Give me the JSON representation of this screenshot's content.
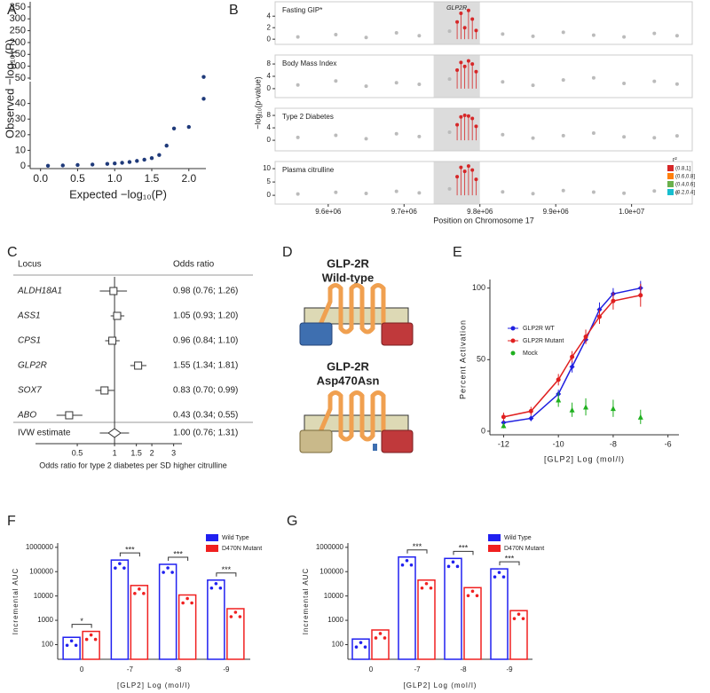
{
  "panel_labels": [
    "A",
    "B",
    "C",
    "D",
    "E",
    "F",
    "G"
  ],
  "diagram": {
    "wild_type": {
      "title": "GLP-2R",
      "subtitle": "Wild-type"
    },
    "mutant": {
      "title": "GLP-2R",
      "subtitle": "Asp470Asn"
    }
  },
  "chart_data": [
    {
      "type": "scatter",
      "color": "#1f3a7a",
      "xlim": [
        -0.14,
        2.23
      ],
      "ylim": [
        42.5,
        372
      ],
      "yticks": [
        50,
        100,
        150,
        200,
        250,
        300,
        350
      ],
      "x": [
        2.2
      ],
      "values": [
        55
      ]
    },
    {
      "type": "scatter",
      "color": "#1f3a7a",
      "xlim": [
        -0.14,
        2.23
      ],
      "ylim": [
        -1.7,
        54
      ],
      "xlabel": "Expected −log₁₀(P)",
      "ylabel": "Observed −log₁₀(P)",
      "xticks": [
        {
          "value": 0,
          "label": "0.0"
        },
        {
          "value": 0.5,
          "label": "0.5"
        },
        {
          "value": 1,
          "label": "1.0"
        },
        {
          "value": 1.5,
          "label": "1.5"
        },
        {
          "value": 2,
          "label": "2.0"
        }
      ],
      "yticks": [
        0,
        10,
        20,
        30,
        40
      ],
      "x": [
        0.1,
        0.3,
        0.5,
        0.7,
        0.9,
        1.0,
        1.1,
        1.2,
        1.3,
        1.4,
        1.5,
        1.6,
        1.7,
        1.8,
        2.0,
        2.2
      ],
      "values": [
        0.1,
        0.3,
        0.6,
        0.9,
        1.3,
        1.6,
        2,
        2.5,
        3.2,
        4,
        5,
        7,
        13,
        24,
        25,
        43
      ]
    },
    {
      "type": "locus",
      "title": "Fasting GIP*",
      "color": "#d62728",
      "background_color": "#bbbbbb",
      "region": [
        9739000,
        9800000
      ],
      "region_label": "GLP2R",
      "xlim": [
        9530000,
        10080000
      ],
      "ylim": [
        -0.9,
        6.5
      ],
      "yticks": [
        0,
        2,
        4
      ],
      "x": [
        9560000,
        9610000,
        9650000,
        9690000,
        9720000,
        9760000,
        9830000,
        9870000,
        9910000,
        9950000,
        9990000,
        10030000,
        10060000
      ],
      "values": [
        0.4,
        0.8,
        0.3,
        1.1,
        0.6,
        1.4,
        0.9,
        0.5,
        1.2,
        0.7,
        0.4,
        1.0,
        0.6
      ],
      "highlight_x": [
        9770000,
        9775000,
        9780000,
        9785000,
        9790000,
        9795000
      ],
      "highlight_values": [
        3,
        4.5,
        2,
        5,
        3.5,
        1.5
      ]
    },
    {
      "type": "locus",
      "title": "Body Mass Index",
      "color": "#d62728",
      "background_color": "#bbbbbb",
      "region": [
        9739000,
        9800000
      ],
      "xlim": [
        9530000,
        10080000
      ],
      "ylim": [
        -2.9,
        10.9
      ],
      "yticks": [
        0,
        4,
        8
      ],
      "x": [
        9560000,
        9610000,
        9650000,
        9690000,
        9720000,
        9760000,
        9830000,
        9870000,
        9910000,
        9950000,
        9990000,
        10030000,
        10060000
      ],
      "values": [
        1.2,
        2.5,
        0.8,
        1.9,
        1.4,
        3.1,
        2.2,
        1.1,
        2.8,
        3.5,
        1.7,
        2.4,
        1.5
      ],
      "highlight_x": [
        9770000,
        9775000,
        9780000,
        9785000,
        9790000,
        9795000
      ],
      "highlight_values": [
        6,
        8.5,
        7.2,
        9,
        8,
        5.5
      ]
    },
    {
      "type": "locus",
      "title": "Type 2 Diabetes",
      "color": "#d62728",
      "background_color": "#bbbbbb",
      "region": [
        9739000,
        9800000
      ],
      "xlim": [
        9530000,
        10080000
      ],
      "ylim": [
        -3.4,
        10.3
      ],
      "yticks": [
        0,
        4,
        8
      ],
      "x": [
        9560000,
        9610000,
        9650000,
        9690000,
        9720000,
        9760000,
        9830000,
        9870000,
        9910000,
        9950000,
        9990000,
        10030000,
        10060000
      ],
      "values": [
        0.9,
        1.6,
        0.5,
        2.1,
        1.2,
        2.6,
        1.8,
        0.7,
        1.5,
        2.3,
        1.1,
        0.8,
        1.4
      ],
      "highlight_x": [
        9770000,
        9775000,
        9780000,
        9785000,
        9790000,
        9795000
      ],
      "highlight_values": [
        5,
        7.5,
        8,
        7.8,
        7,
        4.5
      ]
    },
    {
      "type": "locus",
      "title": "Plasma citrulline",
      "color": "#d62728",
      "background_color": "#bbbbbb",
      "region": [
        9739000,
        9800000
      ],
      "xlim": [
        9530000,
        10080000
      ],
      "ylim": [
        -3.3,
        12.7
      ],
      "yticks": [
        0,
        5,
        10
      ],
      "xlabel": "Position on Chromosome 17",
      "ylabel": "−log₁₀(p-value)",
      "xticks": [
        {
          "value": 9600000,
          "label": "9.6e+06"
        },
        {
          "value": 9700000,
          "label": "9.7e+06"
        },
        {
          "value": 9800000,
          "label": "9.8e+06"
        },
        {
          "value": 9900000,
          "label": "9.9e+06"
        },
        {
          "value": 10000000,
          "label": "1.0e+07"
        }
      ],
      "x": [
        9560000,
        9610000,
        9650000,
        9690000,
        9720000,
        9760000,
        9830000,
        9870000,
        9910000,
        9950000,
        9990000,
        10030000,
        10060000
      ],
      "values": [
        0.5,
        1.1,
        0.7,
        1.5,
        0.9,
        2.4,
        1.3,
        0.6,
        1.8,
        1.2,
        0.8,
        1.6,
        1.0
      ],
      "highlight_x": [
        9770000,
        9775000,
        9780000,
        9785000,
        9790000,
        9795000
      ],
      "highlight_values": [
        7,
        10.5,
        9,
        11,
        9.5,
        6
      ],
      "legend": {
        "title": "r²",
        "labels": [
          "(0.8,1]",
          "(0.6,0.8]",
          "(0.4,0.6]",
          "(0.2,0.4]"
        ],
        "colors": [
          "#d62728",
          "#ff7f0e",
          "#6ab04c",
          "#17becf"
        ]
      }
    },
    {
      "type": "forest",
      "header_locus": "Locus",
      "header_value": "Odds ratio",
      "xlabel": "Odds ratio for type 2 diabetes per SD higher citrulline",
      "xscale": "log",
      "xlim": [
        0.23,
        3.5
      ],
      "xticks": [
        0.5,
        1,
        1.5,
        2,
        3
      ],
      "categories": [
        "ALDH18A1",
        "ASS1",
        "CPS1",
        "GLP2R",
        "SOX7",
        "ABO"
      ],
      "values": [
        0.98,
        1.05,
        0.96,
        1.55,
        0.83,
        0.43
      ],
      "ci_low": [
        0.76,
        0.93,
        0.84,
        1.34,
        0.7,
        0.34
      ],
      "ci_high": [
        1.26,
        1.2,
        1.1,
        1.81,
        0.99,
        0.55
      ],
      "value_labels": [
        "0.98 (0.76; 1.26)",
        "1.05 (0.93; 1.20)",
        "0.96 (0.84; 1.10)",
        "1.55 (1.34; 1.81)",
        "0.83 (0.70; 0.99)",
        "0.43 (0.34; 0.55)"
      ],
      "summary": {
        "label": "IVW estimate",
        "value": 1.0,
        "ci_low": 0.76,
        "ci_high": 1.31,
        "value_label": "1.00 (0.76; 1.31)"
      }
    },
    {
      "type": "line",
      "xlabel": "[GLP2] Log (mol/l)",
      "ylabel": "Percent Activation",
      "xlim": [
        -12.5,
        -5.6
      ],
      "ylim": [
        -2.5,
        106
      ],
      "xticks": [
        -12,
        -10,
        -8,
        -6
      ],
      "yticks": [
        0,
        50,
        100
      ],
      "x": [
        -12,
        -11,
        -10,
        -9.5,
        -9,
        -8.5,
        -8,
        -7
      ],
      "series": [
        {
          "name": "GLP2R WT",
          "color": "#1f1fe0",
          "marker": "diamond",
          "line": true,
          "values": [
            6,
            9,
            26,
            45,
            64,
            85,
            96,
            100
          ],
          "errors": [
            2,
            2,
            3,
            4,
            3,
            5,
            4,
            5
          ]
        },
        {
          "name": "GLP2R Mutant",
          "color": "#e01f1f",
          "marker": "circle",
          "line": true,
          "values": [
            10,
            14,
            36,
            52,
            66,
            80,
            91,
            95
          ],
          "errors": [
            3,
            3,
            4,
            4,
            5,
            5,
            6,
            8
          ]
        },
        {
          "name": "Mock",
          "color": "#1fb01f",
          "marker": "triangle",
          "line": false,
          "values": [
            4,
            null,
            22,
            15,
            17,
            null,
            16,
            10
          ],
          "errors": [
            2,
            null,
            5,
            5,
            6,
            null,
            6,
            5
          ]
        }
      ]
    },
    {
      "type": "bar",
      "yscale": "log",
      "xlabel": "[GLP2] Log (mol/l)",
      "ylabel": "Incremental AUC",
      "ylim": [
        25,
        1500000
      ],
      "yticks": [
        100,
        1000,
        10000,
        100000,
        1000000
      ],
      "categories": [
        "0",
        "-7",
        "-8",
        "-9"
      ],
      "series": [
        {
          "name": "Wild Type",
          "color": "#2020f0",
          "values": [
            200,
            300000,
            200000,
            45000
          ]
        },
        {
          "name": "D470N Mutant",
          "color": "#f02020",
          "values": [
            350,
            27000,
            11000,
            3000
          ]
        }
      ],
      "significance": [
        "*",
        "***",
        "***",
        "***"
      ]
    },
    {
      "type": "bar",
      "yscale": "log",
      "xlabel": "[GLP2] Log (mol/l)",
      "ylabel": "Incremental AUC",
      "ylim": [
        25,
        1500000
      ],
      "yticks": [
        100,
        1000,
        10000,
        100000,
        1000000
      ],
      "categories": [
        "0",
        "-7",
        "-8",
        "-9"
      ],
      "series": [
        {
          "name": "Wild Type",
          "color": "#2020f0",
          "values": [
            170,
            400000,
            350000,
            130000
          ]
        },
        {
          "name": "D470N Mutant",
          "color": "#f02020",
          "values": [
            400,
            45000,
            22000,
            2500
          ]
        }
      ],
      "significance": [
        null,
        "***",
        "***",
        "***"
      ]
    }
  ]
}
